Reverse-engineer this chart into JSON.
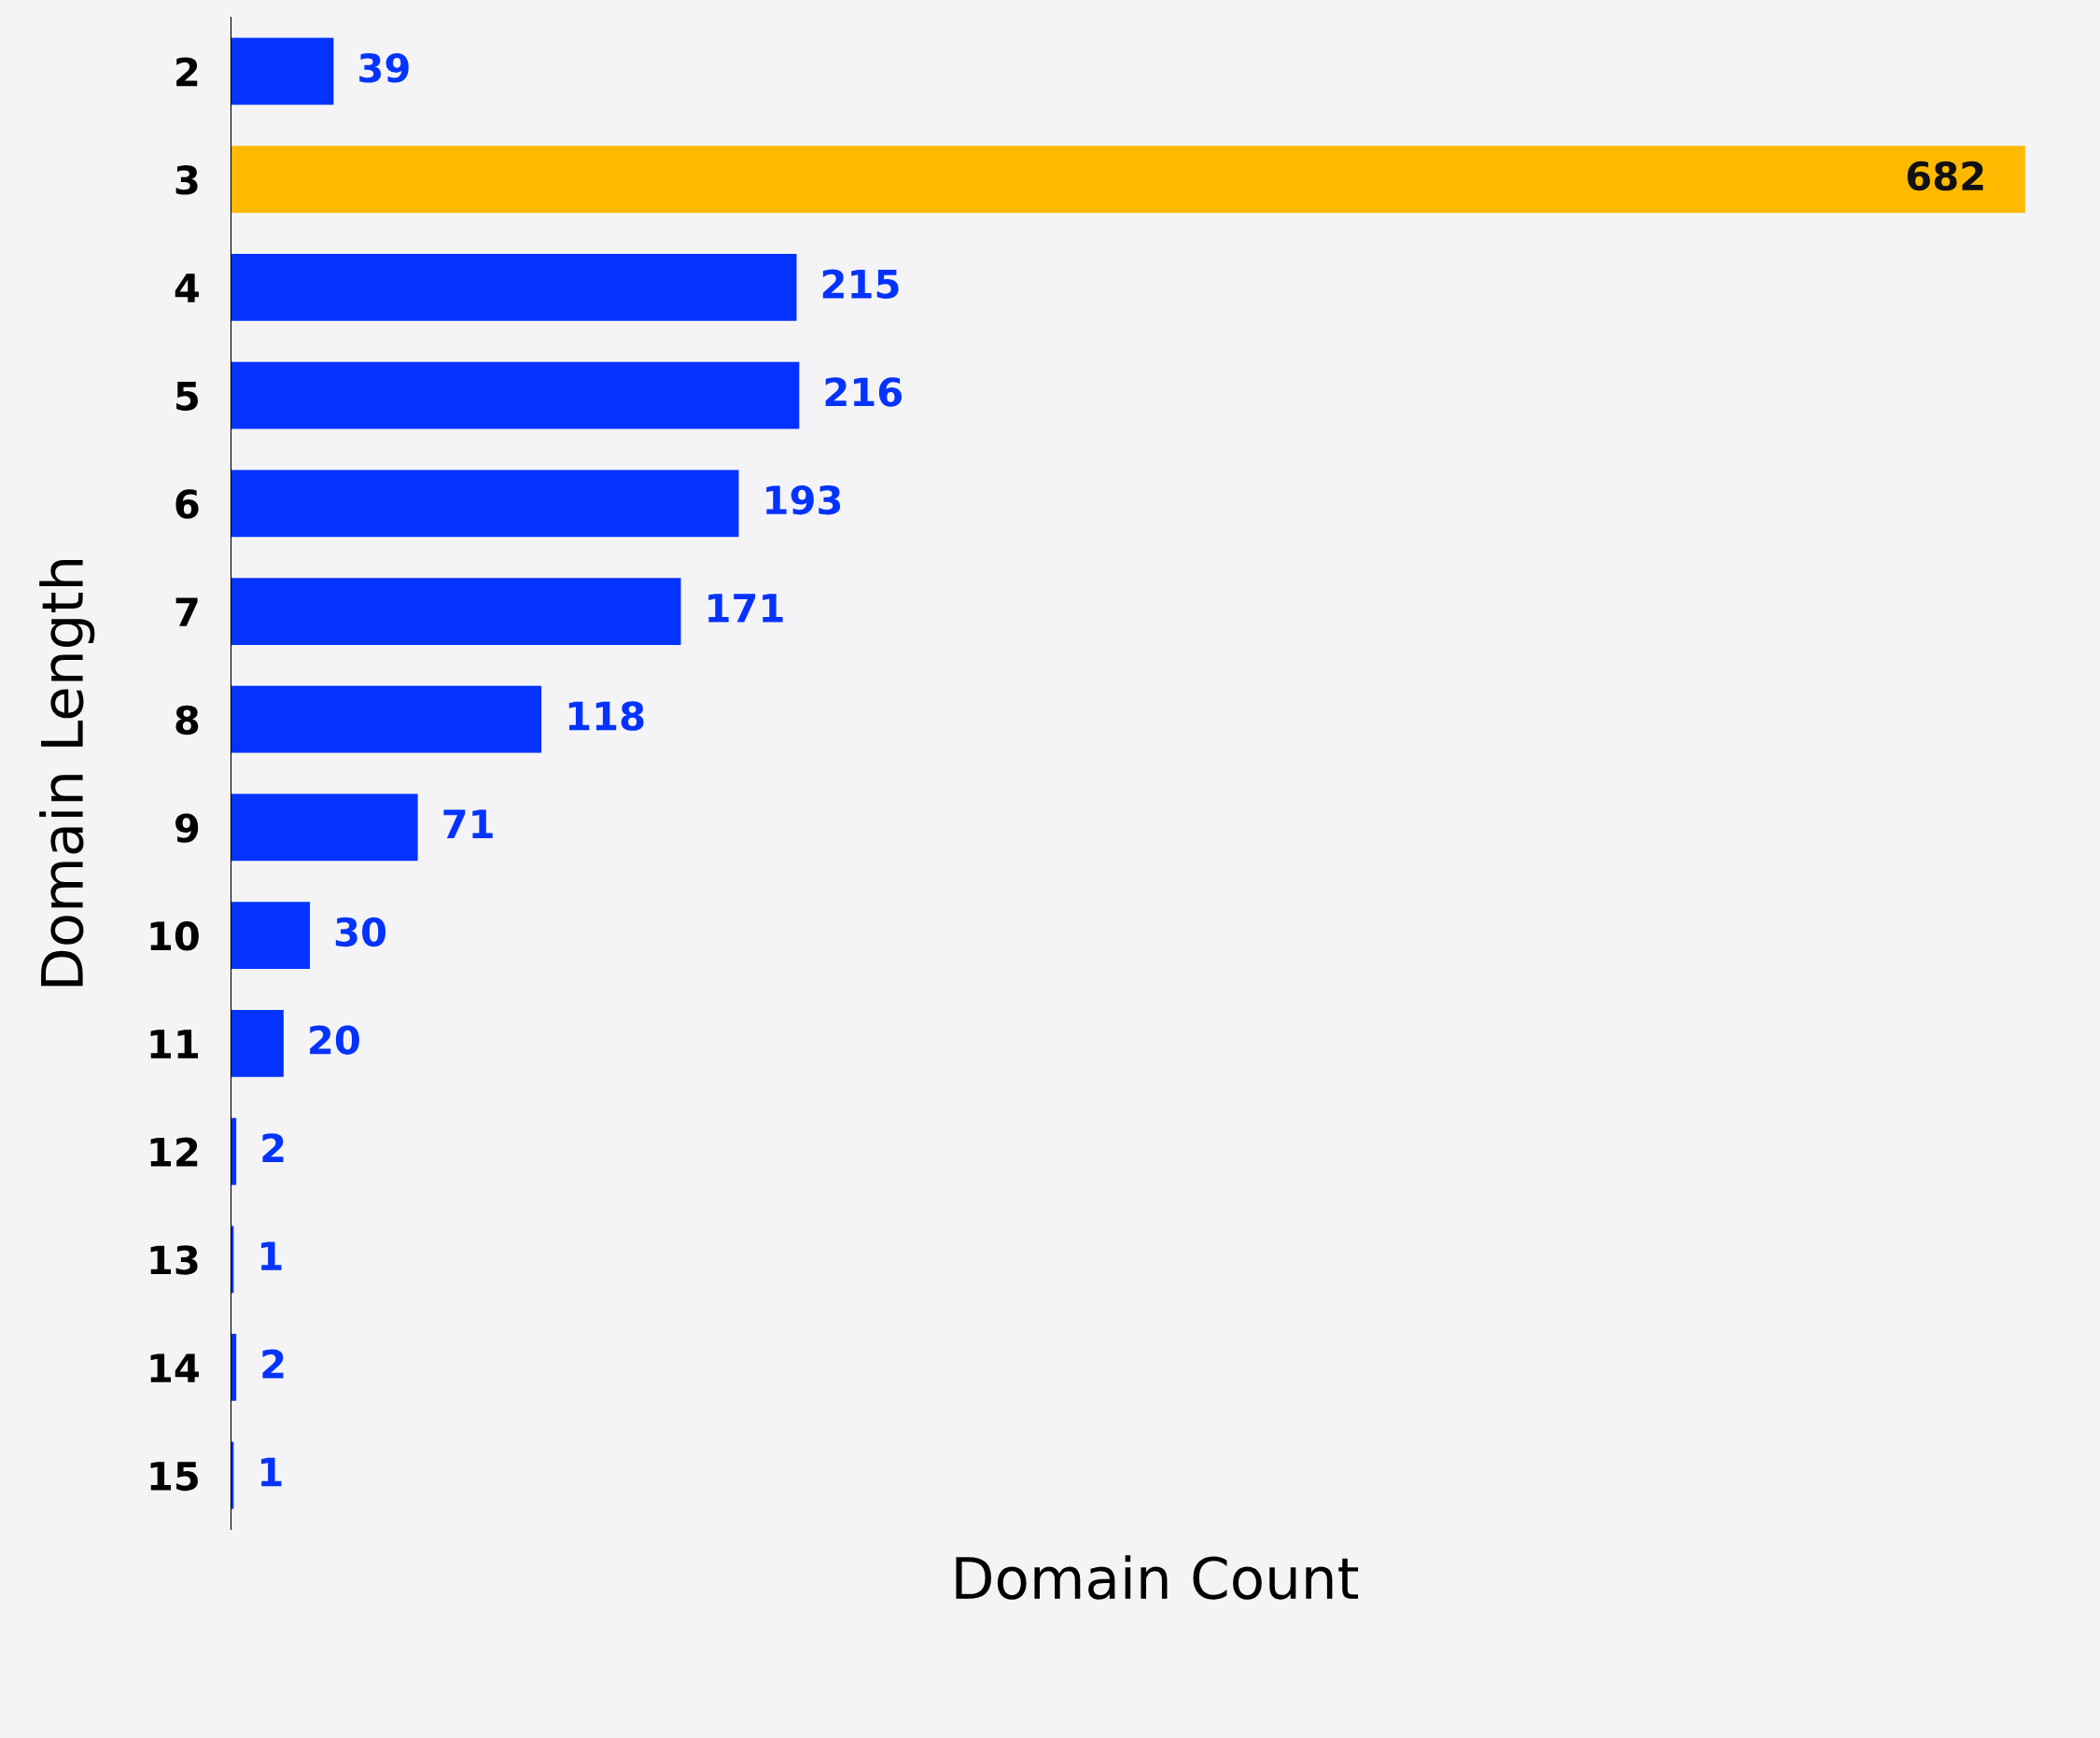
{
  "chart_data": {
    "type": "bar",
    "orientation": "horizontal",
    "xlabel": "Domain Count",
    "ylabel": "Domain Length",
    "categories": [
      "2",
      "3",
      "4",
      "5",
      "6",
      "7",
      "8",
      "9",
      "10",
      "11",
      "12",
      "13",
      "14",
      "15"
    ],
    "values": [
      39,
      682,
      215,
      216,
      193,
      171,
      118,
      71,
      30,
      20,
      2,
      1,
      2,
      1
    ],
    "colors": [
      "#0433ff",
      "#ffba00",
      "#0433ff",
      "#0433ff",
      "#0433ff",
      "#0433ff",
      "#0433ff",
      "#0433ff",
      "#0433ff",
      "#0433ff",
      "#0433ff",
      "#0433ff",
      "#0433ff",
      "#0433ff"
    ],
    "data_labels": true,
    "tick_labels": "y",
    "grid": false,
    "legend": false
  }
}
